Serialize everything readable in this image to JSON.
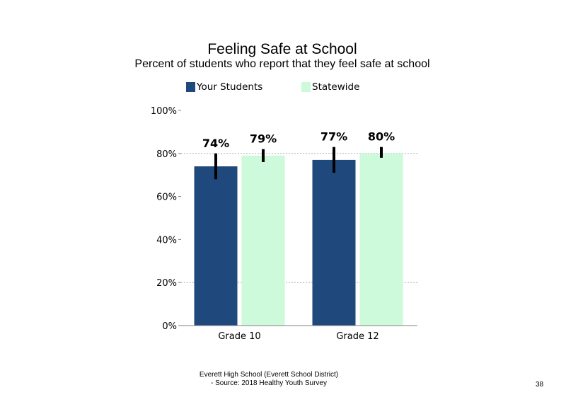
{
  "chart_data": {
    "type": "bar",
    "title": "Feeling  Safe at School",
    "subtitle": "Percent of students who report that they feel safe at school",
    "categories": [
      "Grade 10",
      "Grade 12"
    ],
    "series": [
      {
        "name": "Your Students",
        "color": "#1f497d",
        "values": [
          74,
          77
        ],
        "error_low": [
          68,
          71
        ],
        "error_high": [
          80,
          83
        ],
        "labels": [
          "74%",
          "77%"
        ]
      },
      {
        "name": "Statewide",
        "color": "#ccfadb",
        "values": [
          79,
          80
        ],
        "error_low": [
          76,
          78
        ],
        "error_high": [
          82,
          83
        ],
        "labels": [
          "79%",
          "80%"
        ]
      }
    ],
    "ylim": [
      0,
      100
    ],
    "yticks": [
      0,
      20,
      40,
      60,
      80,
      100
    ],
    "ytick_labels": [
      "0%",
      "20%",
      "40%",
      "60%",
      "80%",
      "100%"
    ],
    "grid": "dotted horizontal at 20% and 80%",
    "legend": "top"
  },
  "footer": {
    "line1": "Everett High  School (Everett School District)",
    "line2": "- Source: 2018 Healthy  Youth Survey"
  },
  "page_number": "38"
}
